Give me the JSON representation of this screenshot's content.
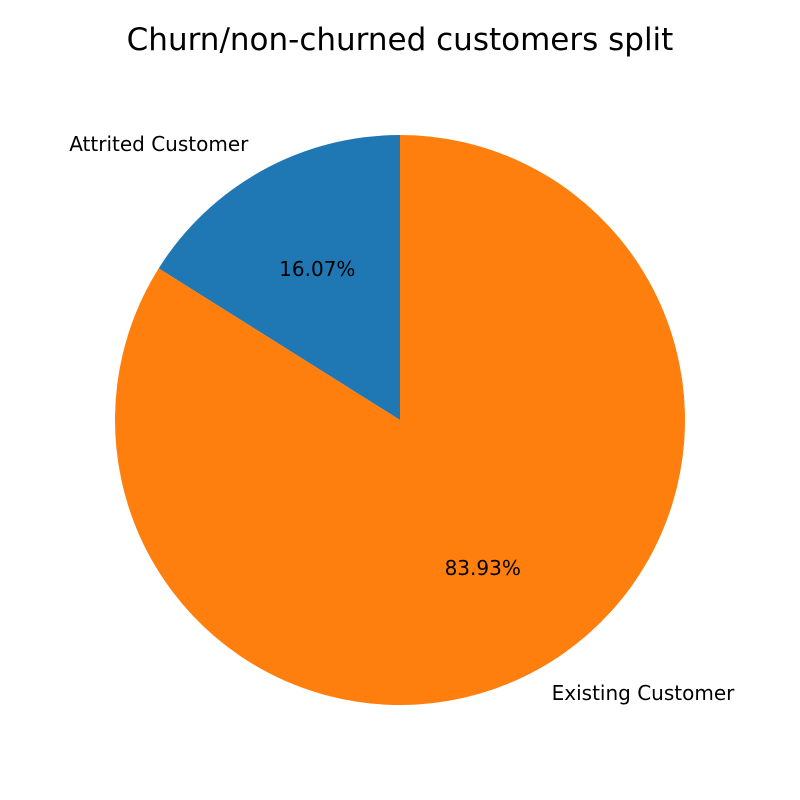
{
  "chart_data": {
    "type": "pie",
    "title": "Churn/non-churned customers split",
    "slices": [
      {
        "label": "Attrited Customer",
        "value": 16.07,
        "pct_label": "16.07%",
        "color": "#1f77b4"
      },
      {
        "label": "Existing Customer",
        "value": 83.93,
        "pct_label": "83.93%",
        "color": "#ff7f0e"
      }
    ],
    "start_angle_deg": 90,
    "direction": "counterclockwise",
    "legend": "none"
  }
}
